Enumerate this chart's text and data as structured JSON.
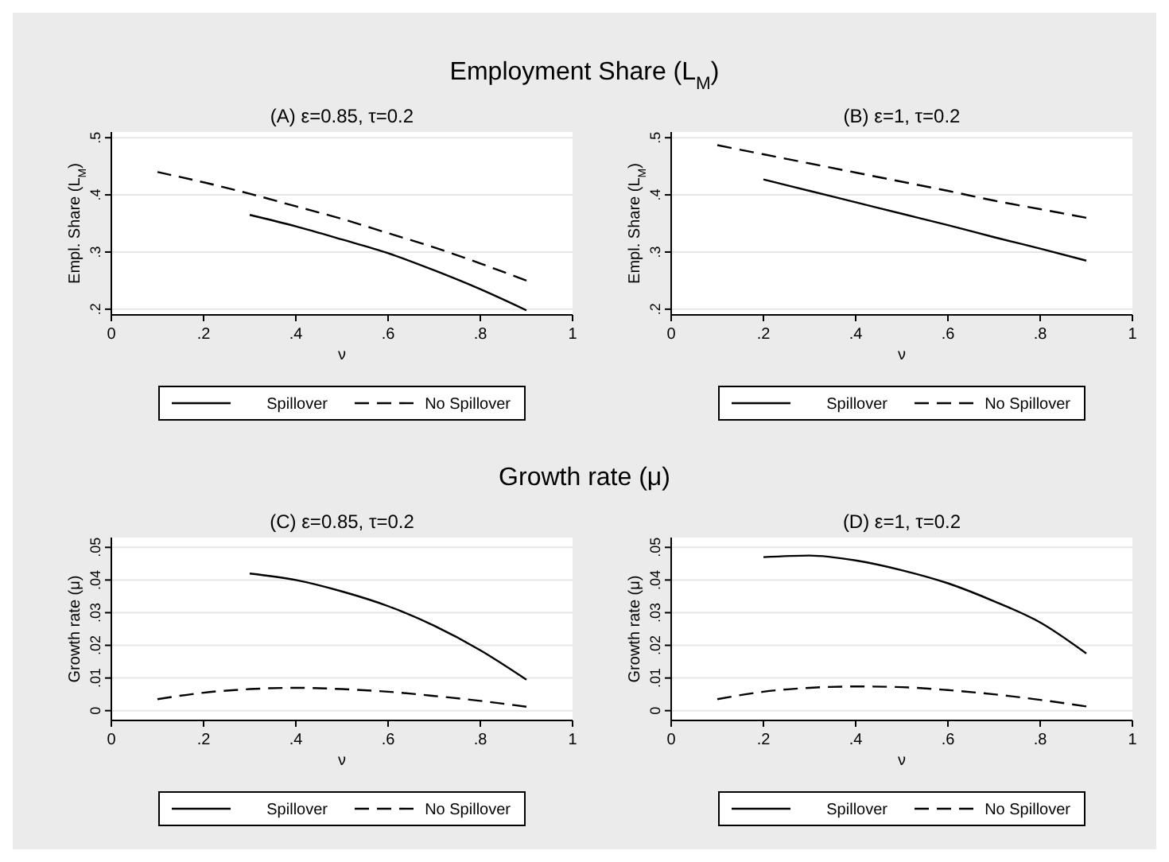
{
  "chart_data": [
    {
      "type": "line",
      "title": "Employment Share (L$_{M}$)",
      "subtitle": "(A) ε=0.85, τ=0.2",
      "xlabel": "ν",
      "ylabel": "Empl. Share (L$_{M}$)",
      "xlim": [
        0,
        1
      ],
      "xticks": [
        {
          "value": 0,
          "label": "0"
        },
        {
          "value": 0.2,
          "label": ".2"
        },
        {
          "value": 0.4,
          "label": ".4"
        },
        {
          "value": 0.6,
          "label": ".6"
        },
        {
          "value": 0.8,
          "label": ".8"
        },
        {
          "value": 1,
          "label": "1"
        }
      ],
      "ylim": [
        0.19,
        0.51
      ],
      "yticks": [
        {
          "value": 0.2,
          "label": ".2"
        },
        {
          "value": 0.3,
          "label": ".3"
        },
        {
          "value": 0.4,
          "label": ".4"
        },
        {
          "value": 0.5,
          "label": ".5"
        }
      ],
      "grid": "y",
      "legend": "bottom",
      "series": [
        {
          "name": "Spillover",
          "color": "#000000",
          "line_style": "solid",
          "x": [
            0.3,
            0.4,
            0.5,
            0.6,
            0.7,
            0.8,
            0.9
          ],
          "values": [
            0.365,
            0.345,
            0.322,
            0.298,
            0.268,
            0.235,
            0.198
          ]
        },
        {
          "name": "No Spillover",
          "color": "#000000",
          "line_style": "dashed",
          "x": [
            0.1,
            0.2,
            0.3,
            0.4,
            0.5,
            0.6,
            0.7,
            0.8,
            0.9
          ],
          "values": [
            0.44,
            0.422,
            0.402,
            0.38,
            0.358,
            0.333,
            0.308,
            0.28,
            0.25
          ]
        }
      ]
    },
    {
      "type": "line",
      "subtitle": "(B) ε=1, τ=0.2",
      "xlabel": "ν",
      "ylabel": "Empl. Share (L$_{M}$)",
      "xlim": [
        0,
        1
      ],
      "xticks": [
        {
          "value": 0,
          "label": "0"
        },
        {
          "value": 0.2,
          "label": ".2"
        },
        {
          "value": 0.4,
          "label": ".4"
        },
        {
          "value": 0.6,
          "label": ".6"
        },
        {
          "value": 0.8,
          "label": ".8"
        },
        {
          "value": 1,
          "label": "1"
        }
      ],
      "ylim": [
        0.19,
        0.51
      ],
      "yticks": [
        {
          "value": 0.2,
          "label": ".2"
        },
        {
          "value": 0.3,
          "label": ".3"
        },
        {
          "value": 0.4,
          "label": ".4"
        },
        {
          "value": 0.5,
          "label": ".5"
        }
      ],
      "grid": "y",
      "legend": "bottom",
      "series": [
        {
          "name": "Spillover",
          "color": "#000000",
          "line_style": "solid",
          "x": [
            0.2,
            0.3,
            0.4,
            0.5,
            0.6,
            0.7,
            0.8,
            0.9
          ],
          "values": [
            0.427,
            0.407,
            0.387,
            0.367,
            0.347,
            0.326,
            0.306,
            0.285
          ]
        },
        {
          "name": "No Spillover",
          "color": "#000000",
          "line_style": "dashed",
          "x": [
            0.1,
            0.2,
            0.3,
            0.4,
            0.5,
            0.6,
            0.7,
            0.8,
            0.9
          ],
          "values": [
            0.487,
            0.471,
            0.455,
            0.439,
            0.423,
            0.407,
            0.39,
            0.375,
            0.36
          ]
        }
      ]
    },
    {
      "type": "line",
      "title": "Growth rate (μ)",
      "subtitle": "(C) ε=0.85, τ=0.2",
      "xlabel": "ν",
      "ylabel": "Growth rate (μ)",
      "xlim": [
        0,
        1
      ],
      "xticks": [
        {
          "value": 0,
          "label": "0"
        },
        {
          "value": 0.2,
          "label": ".2"
        },
        {
          "value": 0.4,
          "label": ".4"
        },
        {
          "value": 0.6,
          "label": ".6"
        },
        {
          "value": 0.8,
          "label": ".8"
        },
        {
          "value": 1,
          "label": "1"
        }
      ],
      "ylim": [
        -0.003,
        0.053
      ],
      "yticks": [
        {
          "value": 0,
          "label": "0"
        },
        {
          "value": 0.01,
          "label": ".01"
        },
        {
          "value": 0.02,
          "label": ".02"
        },
        {
          "value": 0.03,
          "label": ".03"
        },
        {
          "value": 0.04,
          "label": ".04"
        },
        {
          "value": 0.05,
          "label": ".05"
        }
      ],
      "grid": "y",
      "legend": "bottom",
      "series": [
        {
          "name": "Spillover",
          "color": "#000000",
          "line_style": "solid",
          "x": [
            0.3,
            0.4,
            0.5,
            0.6,
            0.7,
            0.8,
            0.9
          ],
          "values": [
            0.042,
            0.04,
            0.0365,
            0.032,
            0.026,
            0.0185,
            0.0095
          ]
        },
        {
          "name": "No Spillover",
          "color": "#000000",
          "line_style": "dashed",
          "x": [
            0.1,
            0.2,
            0.3,
            0.4,
            0.5,
            0.6,
            0.7,
            0.8,
            0.9
          ],
          "values": [
            0.0035,
            0.0055,
            0.0066,
            0.007,
            0.0066,
            0.0058,
            0.0045,
            0.003,
            0.0012
          ]
        }
      ]
    },
    {
      "type": "line",
      "subtitle": "(D) ε=1, τ=0.2",
      "xlabel": "ν",
      "ylabel": "Growth rate (μ)",
      "xlim": [
        0,
        1
      ],
      "xticks": [
        {
          "value": 0,
          "label": "0"
        },
        {
          "value": 0.2,
          "label": ".2"
        },
        {
          "value": 0.4,
          "label": ".4"
        },
        {
          "value": 0.6,
          "label": ".6"
        },
        {
          "value": 0.8,
          "label": ".8"
        },
        {
          "value": 1,
          "label": "1"
        }
      ],
      "ylim": [
        -0.003,
        0.053
      ],
      "yticks": [
        {
          "value": 0,
          "label": "0"
        },
        {
          "value": 0.01,
          "label": ".01"
        },
        {
          "value": 0.02,
          "label": ".02"
        },
        {
          "value": 0.03,
          "label": ".03"
        },
        {
          "value": 0.04,
          "label": ".04"
        },
        {
          "value": 0.05,
          "label": ".05"
        }
      ],
      "grid": "y",
      "legend": "bottom",
      "series": [
        {
          "name": "Spillover",
          "color": "#000000",
          "line_style": "solid",
          "x": [
            0.2,
            0.3,
            0.4,
            0.5,
            0.6,
            0.7,
            0.8,
            0.9
          ],
          "values": [
            0.047,
            0.0475,
            0.046,
            0.043,
            0.039,
            0.0335,
            0.027,
            0.0175
          ]
        },
        {
          "name": "No Spillover",
          "color": "#000000",
          "line_style": "dashed",
          "x": [
            0.1,
            0.2,
            0.3,
            0.4,
            0.5,
            0.6,
            0.7,
            0.8,
            0.9
          ],
          "values": [
            0.0035,
            0.0058,
            0.007,
            0.0074,
            0.0072,
            0.0063,
            0.005,
            0.0033,
            0.0013
          ]
        }
      ]
    }
  ]
}
